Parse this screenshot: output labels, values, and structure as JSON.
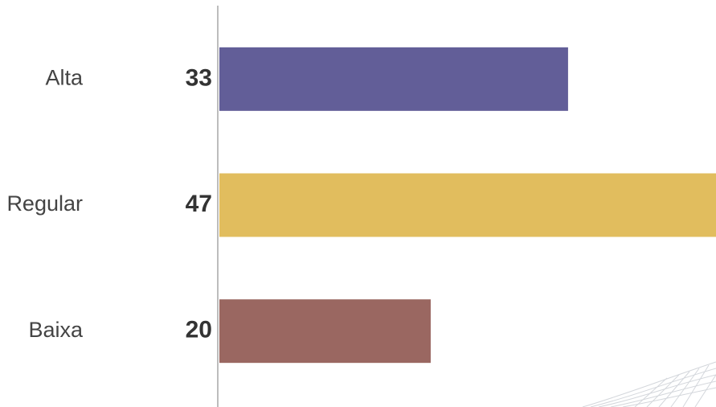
{
  "chart_data": {
    "type": "bar",
    "orientation": "horizontal",
    "categories": [
      "Alta",
      "Regular",
      "Baixa"
    ],
    "values": [
      33,
      47,
      20
    ],
    "colors": [
      "#625e98",
      "#e1bd5e",
      "#9a6761"
    ]
  }
}
